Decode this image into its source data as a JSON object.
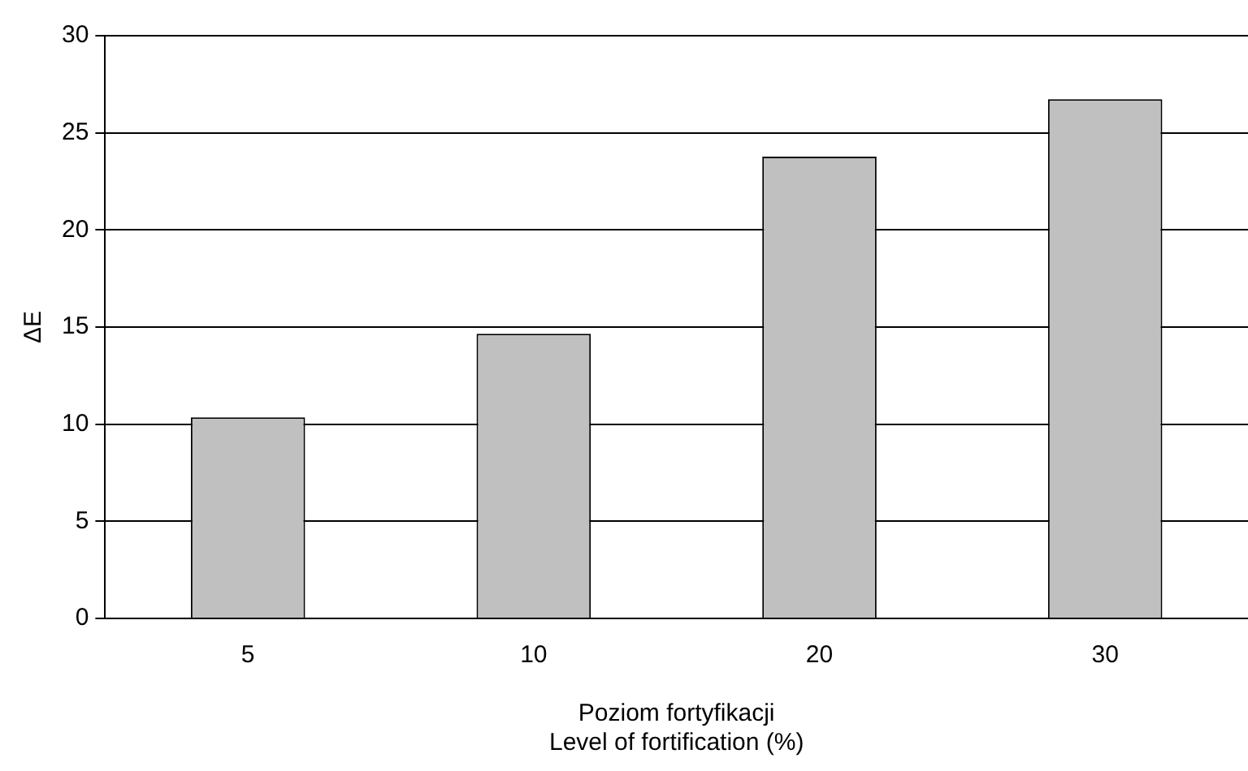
{
  "chart_data": {
    "type": "bar",
    "xlabel": "Poziom fortyfikacji\nLevel of fortification (%)",
    "ylabel": "ΔE",
    "categories": [
      "5",
      "10",
      "20",
      "30"
    ],
    "values": [
      10.35,
      14.66,
      23.77,
      26.73
    ],
    "color": "#c0c0c0",
    "ylim": [
      0,
      30
    ],
    "yticks": [
      0,
      5,
      10,
      15,
      20,
      25,
      30
    ],
    "grid": "y",
    "legend": false
  }
}
